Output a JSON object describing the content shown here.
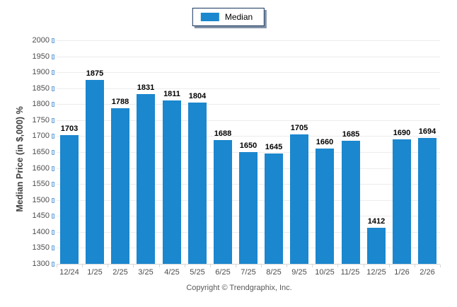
{
  "legend": {
    "label": "Median",
    "swatch_color": "#1b87ce",
    "border_color": "#17375e"
  },
  "y_axis": {
    "title": "Median Price (in $,000) %",
    "tick_labels": [
      "2000",
      "1950",
      "1900",
      "1850",
      "1800",
      "1750",
      "1700",
      "1650",
      "1600",
      "1550",
      "1500",
      "1450",
      "1400",
      "1350",
      "1300"
    ]
  },
  "footer": {
    "copyright": "Copyright © Trendgraphix, Inc."
  },
  "colors": {
    "bar": "#1b87ce",
    "gridline": "#ececec",
    "axis_line": "#d6d6d6",
    "tick_label": "#4d4d4d",
    "value_label": "#000000",
    "copyright_text": "#595959"
  },
  "chart_data": {
    "type": "bar",
    "title": "",
    "series_name": "Median",
    "categories": [
      "12/24",
      "1/25",
      "2/25",
      "3/25",
      "4/25",
      "5/25",
      "6/25",
      "7/25",
      "8/25",
      "9/25",
      "10/25",
      "11/25",
      "12/25",
      "1/26",
      "2/26"
    ],
    "values": [
      1703,
      1875,
      1788,
      1831,
      1811,
      1804,
      1688,
      1650,
      1645,
      1705,
      1660,
      1685,
      1412,
      1690,
      1694
    ],
    "xlabel": "",
    "ylabel": "Median Price (in $,000) %",
    "ylim": [
      1300,
      2000
    ],
    "ytick_step": 50,
    "grid": true,
    "value_labels": true,
    "legend_position": "top-center",
    "bar_color": "#1b87ce"
  }
}
